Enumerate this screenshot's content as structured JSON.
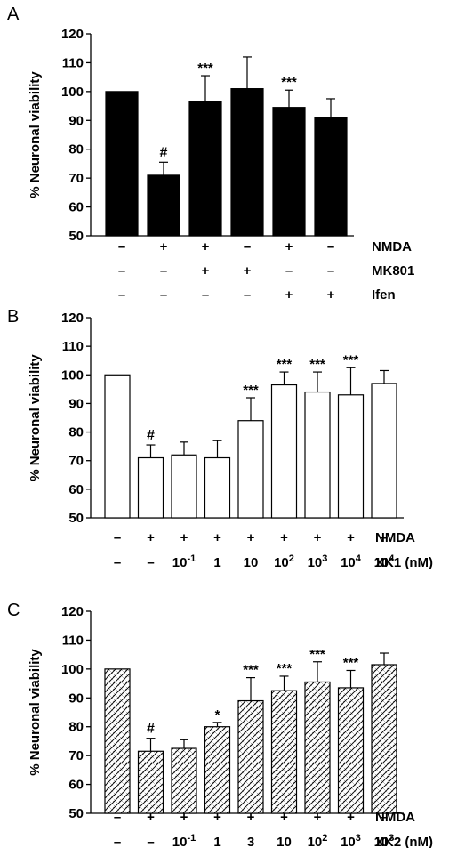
{
  "chart_data": [
    {
      "panel": "A",
      "type": "bar",
      "bar_style": "solid-black",
      "ylabel": "% Neuronal viability",
      "ylim": [
        50,
        120
      ],
      "yticks": [
        50,
        60,
        70,
        80,
        90,
        100,
        110,
        120
      ],
      "values": [
        100,
        71,
        96.5,
        101,
        94.5,
        91
      ],
      "errors": [
        0,
        4.5,
        9,
        11,
        6,
        6.5
      ],
      "significance": [
        "",
        "#",
        "***",
        "",
        "***",
        ""
      ],
      "conditions": [
        {
          "name": "NMDA",
          "marks": [
            "–",
            "+",
            "+",
            "–",
            "+",
            "–"
          ]
        },
        {
          "name": "MK801",
          "marks": [
            "–",
            "–",
            "+",
            "+",
            "–",
            "–"
          ]
        },
        {
          "name": "Ifen",
          "marks": [
            "–",
            "–",
            "–",
            "–",
            "+",
            "+"
          ]
        }
      ]
    },
    {
      "panel": "B",
      "type": "bar",
      "bar_style": "white",
      "ylabel": "% Neuronal viability",
      "ylim": [
        50,
        120
      ],
      "yticks": [
        50,
        60,
        70,
        80,
        90,
        100,
        110,
        120
      ],
      "values": [
        100,
        71,
        72,
        71,
        84,
        96.5,
        94,
        93,
        97
      ],
      "errors": [
        0,
        4.5,
        4.5,
        6,
        8,
        4.5,
        7,
        9.5,
        4.5
      ],
      "significance": [
        "",
        "#",
        "",
        "",
        "***",
        "***",
        "***",
        "***",
        ""
      ],
      "conditions": [
        {
          "name": "NMDA",
          "marks": [
            "–",
            "+",
            "+",
            "+",
            "+",
            "+",
            "+",
            "+",
            "–"
          ]
        },
        {
          "name": "XK1 (nM)",
          "marks": [
            {
              "base": "–",
              "exp": ""
            },
            {
              "base": "–",
              "exp": ""
            },
            {
              "base": "10",
              "exp": "-1"
            },
            {
              "base": "1",
              "exp": ""
            },
            {
              "base": "10",
              "exp": ""
            },
            {
              "base": "10",
              "exp": "2"
            },
            {
              "base": "10",
              "exp": "3"
            },
            {
              "base": "10",
              "exp": "4"
            },
            {
              "base": "10",
              "exp": "4"
            }
          ]
        }
      ]
    },
    {
      "panel": "C",
      "type": "bar",
      "bar_style": "hatched",
      "ylabel": "% Neuronal viability",
      "ylim": [
        50,
        120
      ],
      "yticks": [
        50,
        60,
        70,
        80,
        90,
        100,
        110,
        120
      ],
      "values": [
        100,
        71.5,
        72.5,
        80,
        89,
        92.5,
        95.5,
        93.5,
        101.5
      ],
      "errors": [
        0,
        4.5,
        3,
        1.5,
        8,
        5,
        7,
        6,
        4
      ],
      "significance": [
        "",
        "#",
        "",
        "*",
        "***",
        "***",
        "***",
        "***",
        ""
      ],
      "conditions": [
        {
          "name": "NMDA",
          "marks": [
            "–",
            "+",
            "+",
            "+",
            "+",
            "+",
            "+",
            "+",
            "–"
          ]
        },
        {
          "name": "XK2 (nM)",
          "marks": [
            {
              "base": "–",
              "exp": ""
            },
            {
              "base": "–",
              "exp": ""
            },
            {
              "base": "10",
              "exp": "-1"
            },
            {
              "base": "1",
              "exp": ""
            },
            {
              "base": "3",
              "exp": ""
            },
            {
              "base": "10",
              "exp": ""
            },
            {
              "base": "10",
              "exp": "2"
            },
            {
              "base": "10",
              "exp": "3"
            },
            {
              "base": "10",
              "exp": "3"
            }
          ]
        }
      ]
    }
  ]
}
